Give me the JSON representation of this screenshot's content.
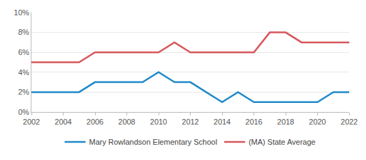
{
  "chart_data": {
    "type": "line",
    "x": [
      2002,
      2003,
      2004,
      2005,
      2006,
      2007,
      2008,
      2009,
      2010,
      2011,
      2012,
      2013,
      2014,
      2015,
      2016,
      2017,
      2018,
      2019,
      2020,
      2021,
      2022
    ],
    "series": [
      {
        "name": "Mary Rowlandson Elementary School",
        "color": "#1f8ac9",
        "values": [
          2,
          2,
          2,
          2,
          3,
          3,
          3,
          3,
          4,
          3,
          3,
          2,
          1,
          2,
          1,
          1,
          1,
          1,
          1,
          2,
          2
        ]
      },
      {
        "name": "(MA) State Average",
        "color": "#d6565c",
        "values": [
          5,
          5,
          5,
          5,
          6,
          6,
          6,
          6,
          6,
          7,
          6,
          6,
          6,
          6,
          6,
          8,
          8,
          7,
          7,
          7,
          7
        ]
      }
    ],
    "xlim": [
      2002,
      2022
    ],
    "xticks": [
      2002,
      2004,
      2006,
      2008,
      2010,
      2012,
      2014,
      2016,
      2018,
      2020,
      2022
    ],
    "ylim": [
      0,
      10
    ],
    "yticks": [
      {
        "value": 0,
        "label": "0%"
      },
      {
        "value": 2,
        "label": "2%"
      },
      {
        "value": 4,
        "label": "4%"
      },
      {
        "value": 6,
        "label": "6%"
      },
      {
        "value": 8,
        "label": "8%"
      },
      {
        "value": 10,
        "label": "10%"
      }
    ],
    "grid": true,
    "legend": "bottom"
  }
}
